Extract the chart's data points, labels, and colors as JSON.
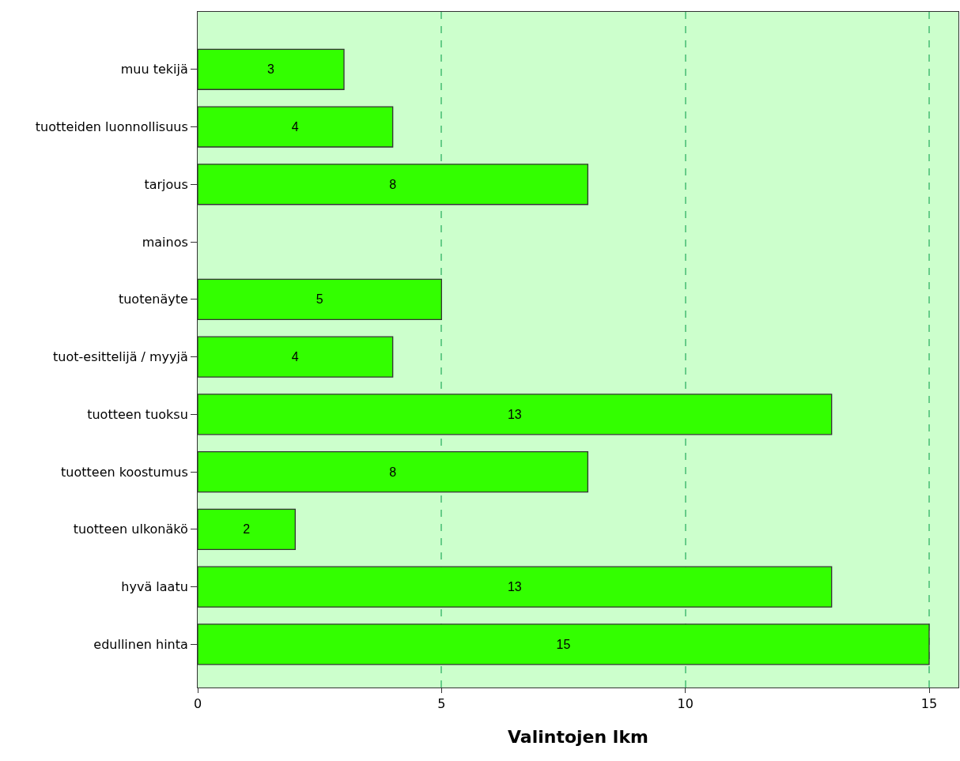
{
  "chart_data": {
    "type": "bar",
    "orientation": "horizontal",
    "xlabel": "Valintojen lkm",
    "categories": [
      "muu tekijä",
      "tuotteiden luonnollisuus",
      "tarjous",
      "mainos",
      "tuotenäyte",
      "tuot-esittelijä / myyjä",
      "tuotteen tuoksu",
      "tuotteen koostumus",
      "tuotteen ulkonäkö",
      "hyvä laatu",
      "edullinen hinta"
    ],
    "values": [
      3,
      4,
      8,
      null,
      5,
      4,
      13,
      8,
      2,
      13,
      15
    ],
    "value_labels": [
      "3",
      "4",
      "8",
      null,
      "5",
      "4",
      "13",
      "8",
      "2",
      "13",
      "15"
    ],
    "color": "#33ff00",
    "xlim": [
      0,
      15.6
    ],
    "xticks": [
      0,
      5,
      10,
      15
    ],
    "grid": "x"
  }
}
